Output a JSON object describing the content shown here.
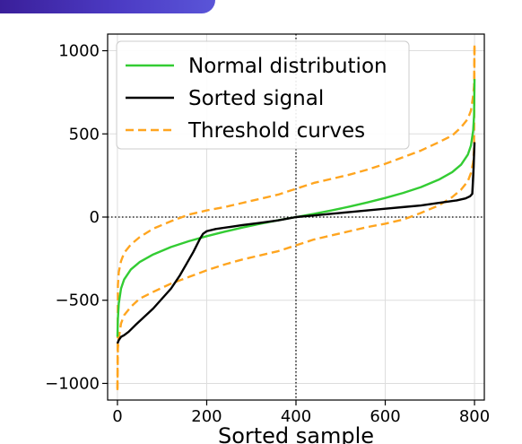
{
  "chart_data": {
    "type": "line",
    "title": "",
    "xlabel": "Sorted sample",
    "ylabel": "",
    "xlim": [
      -22,
      822
    ],
    "ylim": [
      -1100,
      1100
    ],
    "xticks": [
      0,
      200,
      400,
      600,
      800
    ],
    "yticks": [
      -1000,
      -500,
      0,
      500,
      1000
    ],
    "xtick_labels": [
      "0",
      "200",
      "400",
      "600",
      "800"
    ],
    "ytick_labels": [
      "−1000",
      "−500",
      "0",
      "500",
      "1000"
    ],
    "grid": true,
    "legend_position": "top-left",
    "reference_lines": {
      "horizontal_y": 0,
      "vertical_x": 400
    },
    "series": [
      {
        "name": "Normal distribution",
        "color": "#33cc33",
        "style": "solid",
        "x": [
          0,
          1,
          3,
          8,
          15,
          30,
          50,
          80,
          120,
          160,
          200,
          240,
          280,
          320,
          360,
          400,
          440,
          480,
          520,
          560,
          600,
          640,
          680,
          720,
          750,
          770,
          785,
          792,
          797,
          799,
          800
        ],
        "y": [
          -720,
          -610,
          -520,
          -430,
          -375,
          -315,
          -270,
          -225,
          -180,
          -145,
          -115,
          -88,
          -63,
          -40,
          -19,
          0,
          19,
          40,
          63,
          88,
          115,
          145,
          180,
          225,
          270,
          315,
          375,
          430,
          520,
          610,
          830
        ]
      },
      {
        "name": "Sorted signal",
        "color": "#000000",
        "style": "solid",
        "x": [
          0,
          3,
          8,
          15,
          25,
          40,
          60,
          80,
          100,
          120,
          140,
          155,
          170,
          185,
          192,
          200,
          220,
          250,
          280,
          320,
          360,
          400,
          440,
          480,
          520,
          560,
          600,
          640,
          680,
          720,
          760,
          780,
          790,
          795,
          798,
          800
        ],
        "y": [
          -760,
          -740,
          -720,
          -710,
          -690,
          -650,
          -600,
          -550,
          -490,
          -430,
          -350,
          -280,
          -210,
          -130,
          -100,
          -85,
          -72,
          -60,
          -48,
          -35,
          -20,
          0,
          10,
          20,
          30,
          40,
          50,
          60,
          70,
          85,
          100,
          112,
          125,
          140,
          300,
          450
        ]
      },
      {
        "name": "Threshold curves",
        "color": "#ffa51f",
        "style": "dashed",
        "x": [
          0,
          1,
          3,
          8,
          15,
          30,
          50,
          80,
          120,
          160,
          200,
          240,
          280,
          320,
          360,
          400,
          440,
          480,
          520,
          560,
          600,
          640,
          680,
          720,
          750,
          770,
          785,
          792,
          797,
          799,
          800
        ],
        "y": [
          -1030,
          -410,
          -330,
          -265,
          -215,
          -165,
          -120,
          -70,
          -25,
          15,
          40,
          60,
          85,
          110,
          135,
          170,
          205,
          230,
          255,
          285,
          320,
          360,
          400,
          450,
          490,
          540,
          590,
          640,
          730,
          790,
          1040
        ]
      },
      {
        "name": "",
        "color": "#ffa51f",
        "style": "dashed",
        "x": [
          0,
          1,
          3,
          8,
          15,
          30,
          50,
          80,
          120,
          160,
          200,
          240,
          280,
          320,
          360,
          400,
          440,
          480,
          520,
          560,
          600,
          640,
          680,
          720,
          750,
          770,
          785,
          792,
          797,
          799,
          800
        ],
        "y": [
          -1040,
          -790,
          -730,
          -640,
          -590,
          -540,
          -490,
          -450,
          -400,
          -360,
          -320,
          -285,
          -255,
          -230,
          -205,
          -170,
          -135,
          -110,
          -85,
          -60,
          -40,
          -15,
          25,
          70,
          120,
          165,
          215,
          265,
          330,
          410,
          1030
        ]
      }
    ]
  }
}
